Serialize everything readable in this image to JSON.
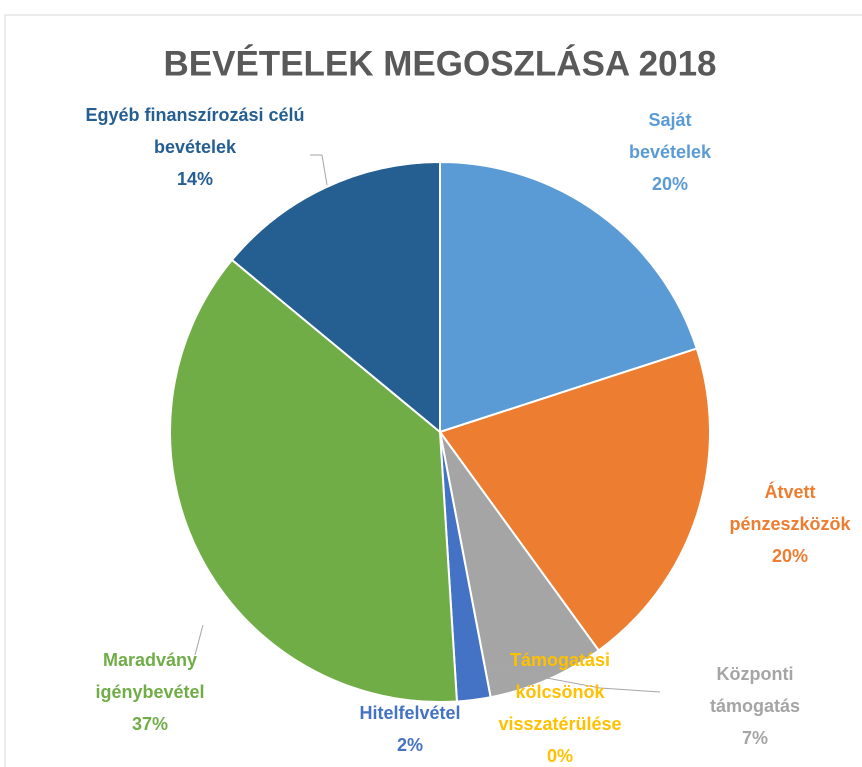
{
  "chart_data": {
    "type": "pie",
    "title": "BEVÉTELEK MEGOSZLÁSA 2018",
    "categories": [
      "Saját bevételek",
      "Átvett pénzeszközök",
      "Központi támogatás",
      "Támogatási kölcsönök visszatérülése",
      "Hitelfelvétel",
      "Maradvány igénybevétel",
      "Egyéb finanszírozási célú bevételek"
    ],
    "values": [
      20,
      20,
      7,
      0,
      2,
      37,
      14
    ],
    "value_labels": [
      "20%",
      "20%",
      "7%",
      "0%",
      "2%",
      "37%",
      "14%"
    ],
    "colors": [
      "#5b9bd5",
      "#ed7d31",
      "#a5a5a5",
      "#ffc000",
      "#4472c4",
      "#70ad47",
      "#255e91"
    ]
  }
}
